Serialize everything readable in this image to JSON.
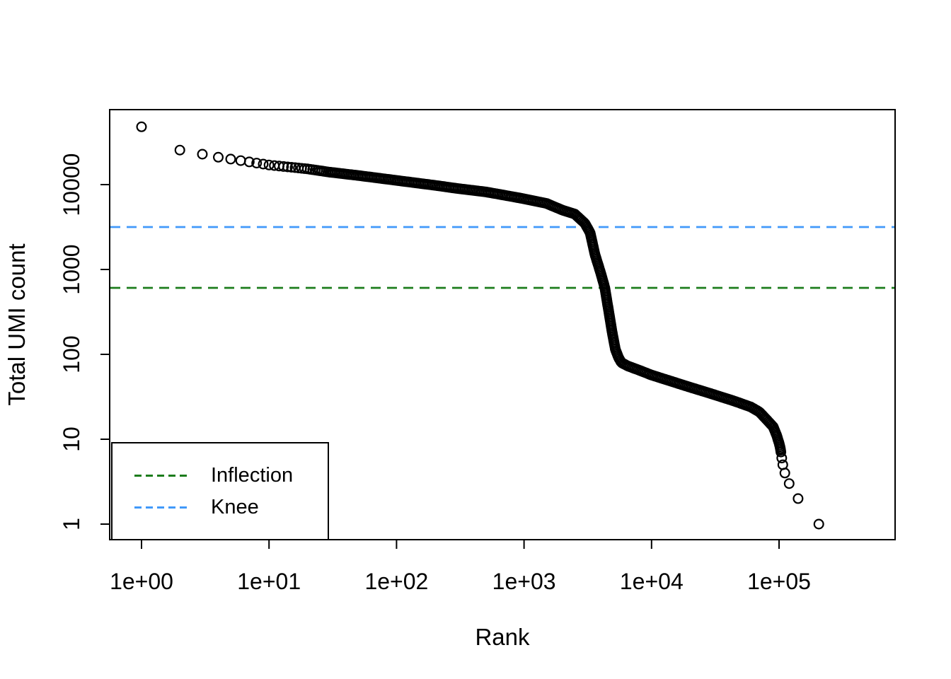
{
  "chart_data": {
    "type": "scatter",
    "title": "",
    "xlabel": "Rank",
    "ylabel": "Total UMI count",
    "x_scale": "log",
    "y_scale": "log",
    "x_ticks": [
      {
        "value": 1,
        "label": "1e+00"
      },
      {
        "value": 10,
        "label": "1e+01"
      },
      {
        "value": 100,
        "label": "1e+02"
      },
      {
        "value": 1000,
        "label": "1e+03"
      },
      {
        "value": 10000,
        "label": "1e+04"
      },
      {
        "value": 100000,
        "label": "1e+05"
      }
    ],
    "y_ticks": [
      {
        "value": 1,
        "label": "1"
      },
      {
        "value": 10,
        "label": "10"
      },
      {
        "value": 100,
        "label": "100"
      },
      {
        "value": 1000,
        "label": "1000"
      },
      {
        "value": 10000,
        "label": "10000"
      }
    ],
    "x_range_log10": [
      -0.25,
      5.91
    ],
    "y_range_log10": [
      -0.18,
      4.88
    ],
    "grid": false,
    "marker": "open-circle",
    "marker_color": "#000000",
    "legend_position": "bottom-left-inside",
    "reference_lines": [
      {
        "id": "inflection",
        "label": "Inflection",
        "value": 607,
        "color": "#1c7c1c",
        "style": "dashed"
      },
      {
        "id": "knee",
        "label": "Knee",
        "value": 3162,
        "color": "#4199fa",
        "style": "dashed"
      }
    ],
    "series": [
      {
        "name": "barcode-rank-curve",
        "curve_anchors": [
          [
            1,
            48000
          ],
          [
            2,
            25500
          ],
          [
            3,
            22800
          ],
          [
            4,
            21000
          ],
          [
            5,
            20000
          ],
          [
            7,
            18500
          ],
          [
            10,
            17000
          ],
          [
            15,
            16000
          ],
          [
            20,
            15300
          ],
          [
            30,
            14000
          ],
          [
            50,
            12800
          ],
          [
            100,
            11200
          ],
          [
            200,
            9800
          ],
          [
            300,
            9000
          ],
          [
            500,
            8200
          ],
          [
            700,
            7500
          ],
          [
            1000,
            6800
          ],
          [
            1500,
            6000
          ],
          [
            2000,
            5000
          ],
          [
            2500,
            4500
          ],
          [
            3000,
            3500
          ],
          [
            3300,
            2700
          ],
          [
            3600,
            1500
          ],
          [
            4000,
            900
          ],
          [
            4300,
            610
          ],
          [
            4600,
            330
          ],
          [
            4900,
            185
          ],
          [
            5200,
            115
          ],
          [
            5500,
            92
          ],
          [
            5800,
            80
          ],
          [
            6500,
            73
          ],
          [
            8000,
            65
          ],
          [
            10000,
            57
          ],
          [
            15000,
            47
          ],
          [
            20000,
            41
          ],
          [
            30000,
            34
          ],
          [
            45000,
            28
          ],
          [
            60000,
            24
          ],
          [
            70000,
            21
          ],
          [
            80000,
            17
          ],
          [
            90000,
            14
          ],
          [
            96000,
            11
          ],
          [
            100000,
            9
          ],
          [
            102000,
            8
          ],
          [
            103500,
            7
          ]
        ],
        "tail_points": [
          [
            105000,
            6
          ],
          [
            107000,
            5
          ],
          [
            111000,
            4
          ],
          [
            120000,
            3
          ],
          [
            141000,
            2
          ],
          [
            205000,
            1
          ]
        ]
      }
    ]
  }
}
